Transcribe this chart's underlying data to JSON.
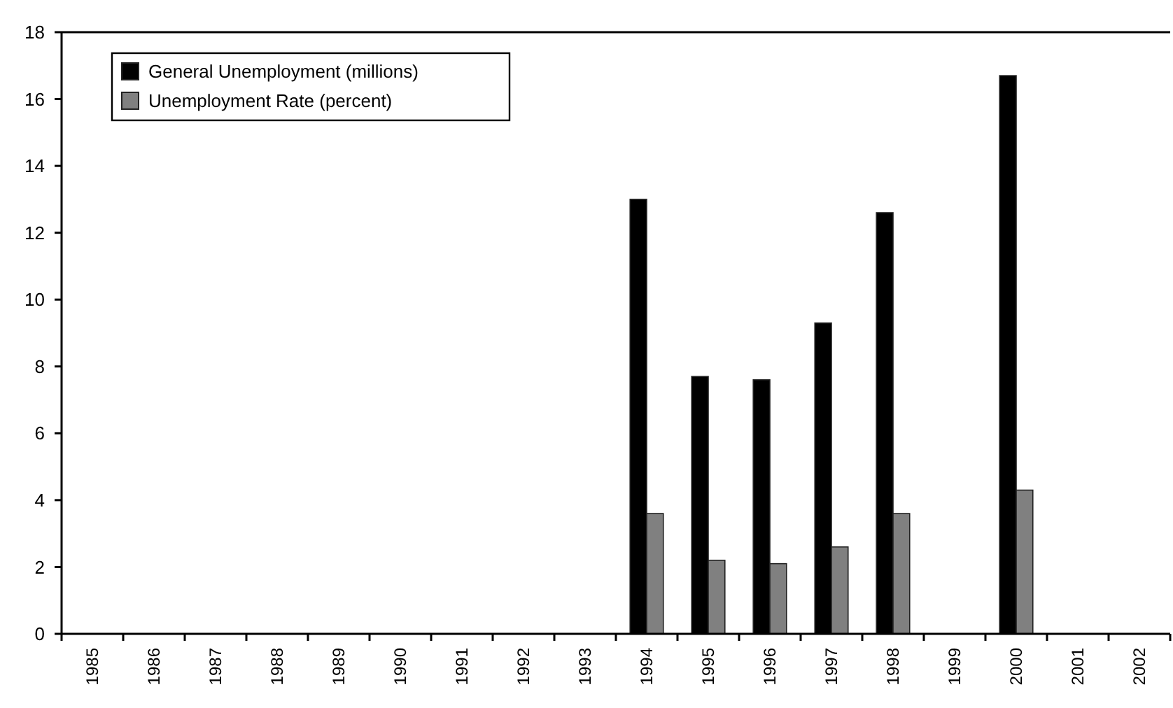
{
  "chart_data": {
    "type": "bar",
    "categories": [
      "1985",
      "1986",
      "1987",
      "1988",
      "1989",
      "1990",
      "1991",
      "1992",
      "1993",
      "1994",
      "1995",
      "1996",
      "1997",
      "1998",
      "1999",
      "2000",
      "2001",
      "2002"
    ],
    "series": [
      {
        "name": "General Unemployment (millions)",
        "color": "#000000",
        "values": [
          null,
          null,
          null,
          null,
          null,
          null,
          null,
          null,
          null,
          13.0,
          7.7,
          7.6,
          9.3,
          12.6,
          null,
          16.7,
          null,
          null
        ]
      },
      {
        "name": "Unemployment Rate (percent)",
        "color": "#808080",
        "values": [
          null,
          null,
          null,
          null,
          null,
          null,
          null,
          null,
          null,
          3.6,
          2.2,
          2.1,
          2.6,
          3.6,
          null,
          4.3,
          null,
          null
        ]
      }
    ],
    "ylim": [
      0,
      18
    ],
    "yticks": [
      0,
      2,
      4,
      6,
      8,
      10,
      12,
      14,
      16,
      18
    ],
    "grid": false,
    "legend": "top left"
  }
}
